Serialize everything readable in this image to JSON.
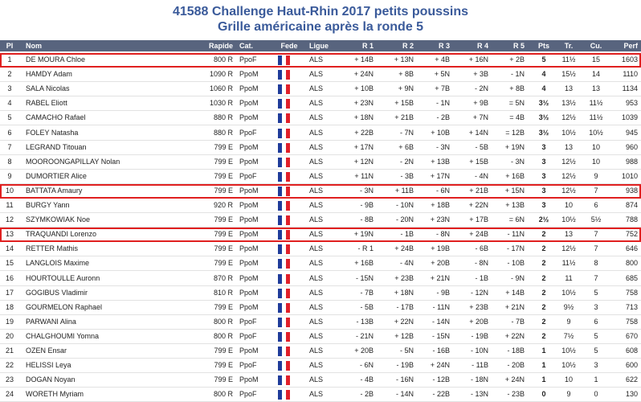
{
  "header": {
    "title": "41588 Challenge Haut-Rhin 2017 petits poussins",
    "subtitle": "Grille américaine après la ronde 5"
  },
  "table": {
    "header": [
      "Pl",
      "Nom",
      "Rapide",
      "Cat.",
      "Fede",
      "Ligue",
      "R 1",
      "R 2",
      "R 3",
      "R 4",
      "R 5",
      "Pts",
      "Tr.",
      "Cu.",
      "Perf"
    ],
    "highlight_rows": [
      0,
      9,
      12
    ],
    "rows": [
      [
        "1",
        "DE MOURA Chloe",
        "800 R",
        "PpoF",
        "ALS",
        "+ 14B",
        "+ 13N",
        "+ 4B",
        "+ 16N",
        "+ 2B",
        "5",
        "11½",
        "15",
        "1603"
      ],
      [
        "2",
        "HAMDY Adam",
        "1090 R",
        "PpoM",
        "ALS",
        "+ 24N",
        "+ 8B",
        "+ 5N",
        "+ 3B",
        "- 1N",
        "4",
        "15½",
        "14",
        "1110"
      ],
      [
        "3",
        "SALA Nicolas",
        "1060 R",
        "PpoM",
        "ALS",
        "+ 10B",
        "+ 9N",
        "+ 7B",
        "- 2N",
        "+ 8B",
        "4",
        "13",
        "13",
        "1134"
      ],
      [
        "4",
        "RABEL Eliott",
        "1030 R",
        "PpoM",
        "ALS",
        "+ 23N",
        "+ 15B",
        "- 1N",
        "+ 9B",
        "= 5N",
        "3½",
        "13½",
        "11½",
        "953"
      ],
      [
        "5",
        "CAMACHO Rafael",
        "880 R",
        "PpoM",
        "ALS",
        "+ 18N",
        "+ 21B",
        "- 2B",
        "+ 7N",
        "= 4B",
        "3½",
        "12½",
        "11½",
        "1039"
      ],
      [
        "6",
        "FOLEY Natasha",
        "880 R",
        "PpoF",
        "ALS",
        "+ 22B",
        "- 7N",
        "+ 10B",
        "+ 14N",
        "= 12B",
        "3½",
        "10½",
        "10½",
        "945"
      ],
      [
        "7",
        "LEGRAND Titouan",
        "799 E",
        "PpoM",
        "ALS",
        "+ 17N",
        "+ 6B",
        "- 3N",
        "- 5B",
        "+ 19N",
        "3",
        "13",
        "10",
        "960"
      ],
      [
        "8",
        "MOOROONGAPILLAY Nolan",
        "799 E",
        "PpoM",
        "ALS",
        "+ 12N",
        "- 2N",
        "+ 13B",
        "+ 15B",
        "- 3N",
        "3",
        "12½",
        "10",
        "988"
      ],
      [
        "9",
        "DUMORTIER Alice",
        "799 E",
        "PpoF",
        "ALS",
        "+ 11N",
        "- 3B",
        "+ 17N",
        "- 4N",
        "+ 16B",
        "3",
        "12½",
        "9",
        "1010"
      ],
      [
        "10",
        "BATTATA Amaury",
        "799 E",
        "PpoM",
        "ALS",
        "- 3N",
        "+ 11B",
        "- 6N",
        "+ 21B",
        "+ 15N",
        "3",
        "12½",
        "7",
        "938"
      ],
      [
        "11",
        "BURGY Yann",
        "920 R",
        "PpoM",
        "ALS",
        "- 9B",
        "- 10N",
        "+ 18B",
        "+ 22N",
        "+ 13B",
        "3",
        "10",
        "6",
        "874"
      ],
      [
        "12",
        "SZYMKOWIAK Noe",
        "799 E",
        "PpoM",
        "ALS",
        "- 8B",
        "- 20N",
        "+ 23N",
        "+ 17B",
        "= 6N",
        "2½",
        "10½",
        "5½",
        "788"
      ],
      [
        "13",
        "TRAQUANDI Lorenzo",
        "799 E",
        "PpoM",
        "ALS",
        "+ 19N",
        "- 1B",
        "- 8N",
        "+ 24B",
        "- 11N",
        "2",
        "13",
        "7",
        "752"
      ],
      [
        "14",
        "RETTER Mathis",
        "799 E",
        "PpoM",
        "ALS",
        "- R 1",
        "+ 24B",
        "+ 19B",
        "- 6B",
        "- 17N",
        "2",
        "12½",
        "7",
        "646"
      ],
      [
        "15",
        "LANGLOIS Maxime",
        "799 E",
        "PpoM",
        "ALS",
        "+ 16B",
        "- 4N",
        "+ 20B",
        "- 8N",
        "- 10B",
        "2",
        "11½",
        "8",
        "800"
      ],
      [
        "16",
        "HOURTOULLE Auronn",
        "870 R",
        "PpoM",
        "ALS",
        "- 15N",
        "+ 23B",
        "+ 21N",
        "- 1B",
        "- 9N",
        "2",
        "11",
        "7",
        "685"
      ],
      [
        "17",
        "GOGIBUS Vladimir",
        "810 R",
        "PpoM",
        "ALS",
        "- 7B",
        "+ 18N",
        "- 9B",
        "- 12N",
        "+ 14B",
        "2",
        "10½",
        "5",
        "758"
      ],
      [
        "18",
        "GOURMELON Raphael",
        "799 E",
        "PpoM",
        "ALS",
        "- 5B",
        "- 17B",
        "- 11N",
        "+ 23B",
        "+ 21N",
        "2",
        "9½",
        "3",
        "713"
      ],
      [
        "19",
        "PARWANI Alina",
        "800 R",
        "PpoF",
        "ALS",
        "- 13B",
        "+ 22N",
        "- 14N",
        "+ 20B",
        "- 7B",
        "2",
        "9",
        "6",
        "758"
      ],
      [
        "20",
        "CHALGHOUMI Yomna",
        "800 R",
        "PpoF",
        "ALS",
        "- 21N",
        "+ 12B",
        "- 15N",
        "- 19B",
        "+ 22N",
        "2",
        "7½",
        "5",
        "670"
      ],
      [
        "21",
        "OZEN Ensar",
        "799 E",
        "PpoM",
        "ALS",
        "+ 20B",
        "- 5N",
        "- 16B",
        "- 10N",
        "- 18B",
        "1",
        "10½",
        "5",
        "608"
      ],
      [
        "22",
        "HELISSI Leya",
        "799 E",
        "PpoF",
        "ALS",
        "- 6N",
        "- 19B",
        "+ 24N",
        "- 11B",
        "- 20B",
        "1",
        "10½",
        "3",
        "600"
      ],
      [
        "23",
        "DOGAN Noyan",
        "799 E",
        "PpoM",
        "ALS",
        "- 4B",
        "- 16N",
        "- 12B",
        "- 18N",
        "+ 24N",
        "1",
        "10",
        "1",
        "622"
      ],
      [
        "24",
        "WORETH Myriam",
        "800 R",
        "PpoF",
        "ALS",
        "- 2B",
        "- 14N",
        "- 22B",
        "- 13N",
        "- 23B",
        "0",
        "9",
        "0",
        "130"
      ]
    ]
  }
}
